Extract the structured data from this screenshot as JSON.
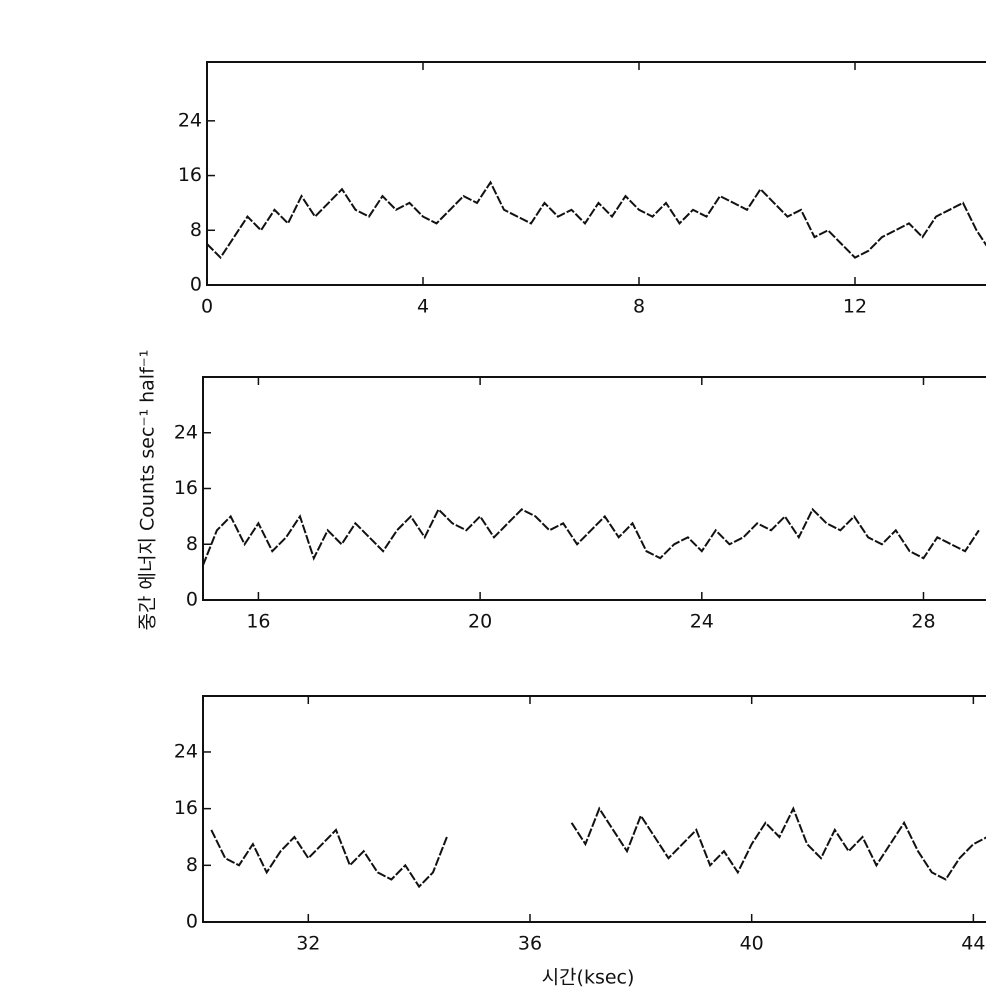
{
  "chart_data": [
    {
      "type": "line",
      "xlim": [
        0,
        14.5
      ],
      "ylim": [
        0,
        32.6
      ],
      "xticks": [
        0,
        4,
        8,
        12
      ],
      "yticks": [
        0,
        8,
        16,
        24
      ],
      "x": [
        0,
        0.25,
        0.5,
        0.75,
        1,
        1.25,
        1.5,
        1.75,
        2,
        2.25,
        2.5,
        2.75,
        3,
        3.25,
        3.5,
        3.75,
        4,
        4.25,
        4.5,
        4.75,
        5,
        5.25,
        5.5,
        5.75,
        6,
        6.25,
        6.5,
        6.75,
        7,
        7.25,
        7.5,
        7.75,
        8,
        8.25,
        8.5,
        8.75,
        9,
        9.25,
        9.5,
        9.75,
        10,
        10.25,
        10.5,
        10.75,
        11,
        11.25,
        11.5,
        11.75,
        12,
        12.25,
        12.5,
        12.75,
        13,
        13.25,
        13.5,
        13.75,
        14,
        14.25,
        14.5
      ],
      "series": [
        {
          "color": "#111111",
          "values": [
            6,
            4,
            7,
            10,
            8,
            11,
            9,
            13,
            10,
            12,
            14,
            11,
            10,
            13,
            11,
            12,
            10,
            9,
            11,
            13,
            12,
            15,
            11,
            10,
            9,
            12,
            10,
            11,
            9,
            12,
            10,
            13,
            11,
            10,
            12,
            9,
            11,
            10,
            13,
            12,
            11,
            14,
            12,
            10,
            11,
            7,
            8,
            6,
            4,
            5,
            7,
            8,
            9,
            7,
            10,
            11,
            12,
            8,
            5
          ]
        }
      ]
    },
    {
      "type": "line",
      "xlim": [
        15,
        29.2
      ],
      "ylim": [
        0,
        32
      ],
      "xticks": [
        16,
        20,
        24,
        28
      ],
      "yticks": [
        0,
        8,
        16,
        24
      ],
      "ylabel": "중간 에너지 Counts sec⁻¹ half⁻¹",
      "x": [
        15,
        15.25,
        15.5,
        15.75,
        16,
        16.25,
        16.5,
        16.75,
        17,
        17.25,
        17.5,
        17.75,
        18,
        18.25,
        18.5,
        18.75,
        19,
        19.25,
        19.5,
        19.75,
        20,
        20.25,
        20.5,
        20.75,
        21,
        21.25,
        21.5,
        21.75,
        22,
        22.25,
        22.5,
        22.75,
        23,
        23.25,
        23.5,
        23.75,
        24,
        24.25,
        24.5,
        24.75,
        25,
        25.25,
        25.5,
        25.75,
        26,
        26.25,
        26.5,
        26.75,
        27,
        27.25,
        27.5,
        27.75,
        28,
        28.25,
        28.5,
        28.75,
        29
      ],
      "series": [
        {
          "color": "#111111",
          "values": [
            5,
            10,
            12,
            8,
            11,
            7,
            9,
            12,
            6,
            10,
            8,
            11,
            9,
            7,
            10,
            12,
            9,
            13,
            11,
            10,
            12,
            9,
            11,
            13,
            12,
            10,
            11,
            8,
            10,
            12,
            9,
            11,
            7,
            6,
            8,
            9,
            7,
            10,
            8,
            9,
            11,
            10,
            12,
            9,
            13,
            11,
            10,
            12,
            9,
            8,
            10,
            7,
            6,
            9,
            8,
            7,
            10
          ]
        }
      ]
    },
    {
      "type": "line",
      "xlim": [
        30.1,
        44.3
      ],
      "ylim": [
        0,
        31.9
      ],
      "xticks": [
        32,
        36,
        40,
        44
      ],
      "yticks": [
        0,
        8,
        16,
        24
      ],
      "xlabel": "시간(ksec)",
      "x": [
        30.25,
        30.5,
        30.75,
        31,
        31.25,
        31.5,
        31.75,
        32,
        32.25,
        32.5,
        32.75,
        33,
        33.25,
        33.5,
        33.75,
        34,
        34.25,
        34.5,
        34.75,
        35,
        35.25,
        35.5,
        35.75,
        36,
        36.25,
        36.5,
        36.75,
        37,
        37.25,
        37.5,
        37.75,
        38,
        38.25,
        38.5,
        38.75,
        39,
        39.25,
        39.5,
        39.75,
        40,
        40.25,
        40.5,
        40.75,
        41,
        41.25,
        41.5,
        41.75,
        42,
        42.25,
        42.5,
        42.75,
        43,
        43.25,
        43.5,
        43.75,
        44,
        44.25
      ],
      "series": [
        {
          "color": "#111111",
          "values": [
            13,
            9,
            8,
            11,
            7,
            10,
            12,
            9,
            11,
            13,
            8,
            10,
            7,
            6,
            8,
            5,
            7,
            12,
            null,
            null,
            null,
            null,
            null,
            null,
            null,
            null,
            14,
            11,
            16,
            13,
            10,
            15,
            12,
            9,
            11,
            13,
            8,
            10,
            7,
            11,
            14,
            12,
            16,
            11,
            9,
            13,
            10,
            12,
            8,
            11,
            14,
            10,
            7,
            6,
            9,
            11,
            12
          ]
        }
      ]
    }
  ]
}
